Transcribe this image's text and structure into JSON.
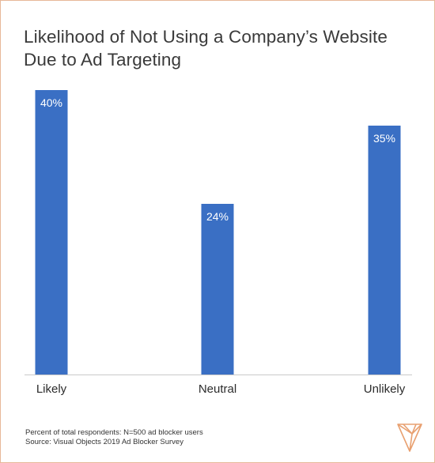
{
  "chart_data": {
    "type": "bar",
    "title": "Likelihood of Not Using a Company’s Website Due to Ad Targeting",
    "categories": [
      "Likely",
      "Neutral",
      "Unlikely"
    ],
    "values": [
      40,
      24,
      35
    ],
    "data_labels": [
      "40%",
      "24%",
      "35%"
    ],
    "xlabel": "",
    "ylabel": "",
    "ylim": [
      0,
      40
    ],
    "grid": false,
    "legend": "none",
    "bar_color": "#3a6fc4",
    "axis_color": "#c9c9c9"
  },
  "footnote": {
    "line1": "Percent of total respondents: N=500 ad blocker users",
    "line2": "Source: Visual Objects 2019 Ad Blocker Survey"
  },
  "logo": {
    "icon": "visual-objects-v-logo-icon",
    "color": "#e8a070"
  }
}
